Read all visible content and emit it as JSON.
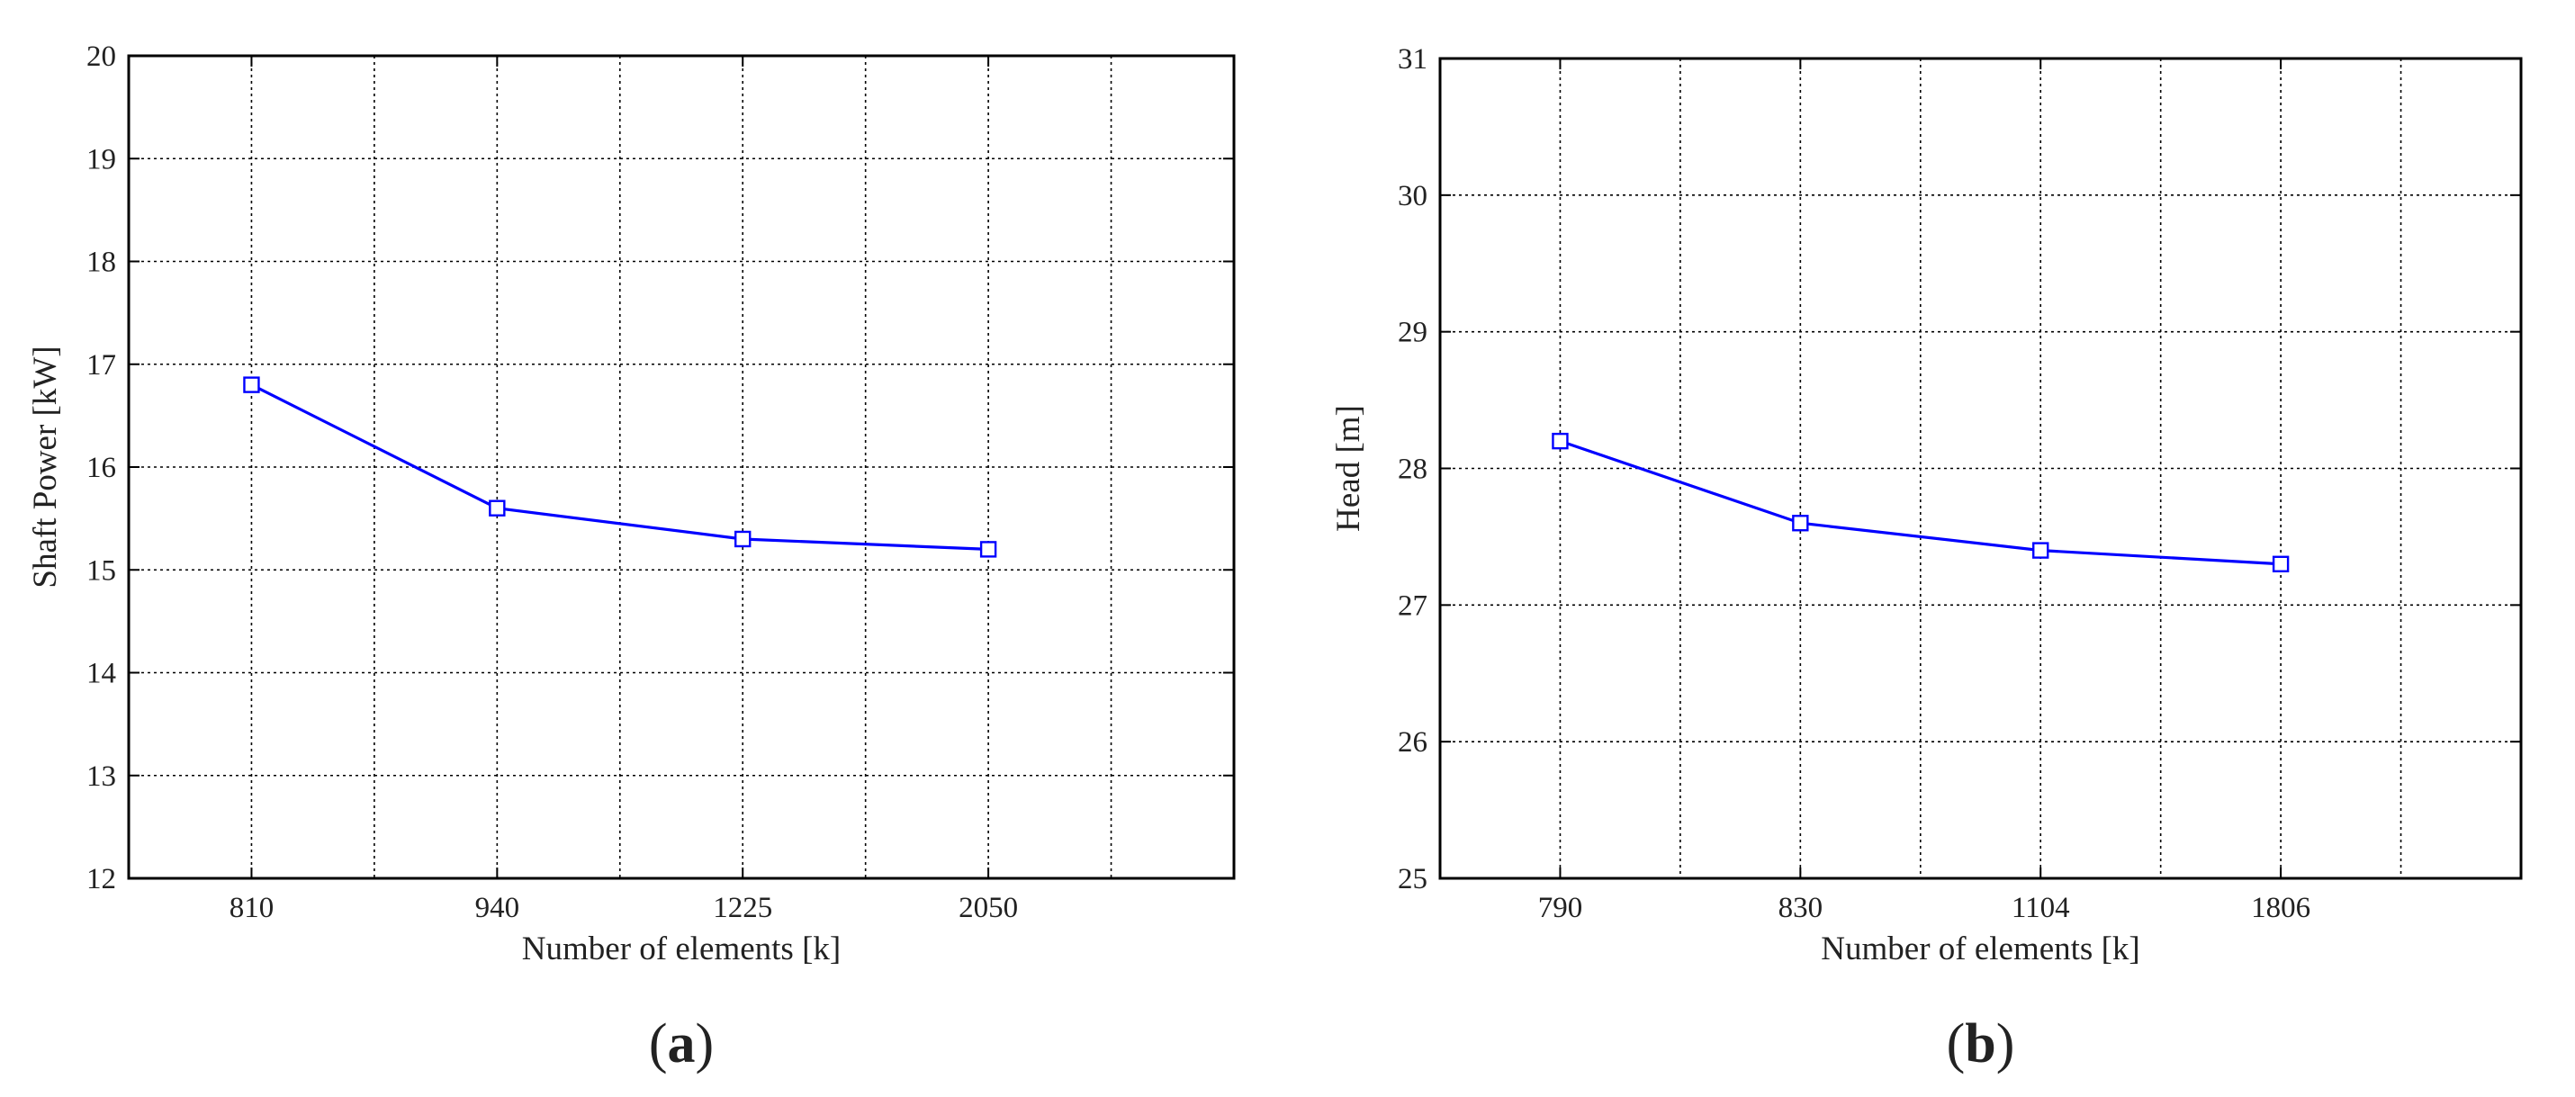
{
  "chart_data": [
    {
      "type": "line",
      "panel_label": [
        "(",
        "a",
        ")"
      ],
      "title": "",
      "xlabel": "Number of elements [k]",
      "ylabel": "Shaft Power [kW]",
      "categories": [
        "810",
        "940",
        "1225",
        "2050"
      ],
      "series": [
        {
          "values": [
            16.8,
            15.6,
            15.3,
            15.2
          ],
          "color": "#0000ff",
          "marker": "square"
        }
      ],
      "ylim": [
        12,
        20
      ],
      "yticks": [
        "12",
        "13",
        "14",
        "15",
        "16",
        "17",
        "18",
        "19",
        "20"
      ],
      "grid": true
    },
    {
      "type": "line",
      "panel_label": [
        "(",
        "b",
        ")"
      ],
      "title": "",
      "xlabel": "Number of elements [k]",
      "ylabel": "Head [m]",
      "categories": [
        "790",
        "830",
        "1104",
        "1806"
      ],
      "series": [
        {
          "values": [
            28.2,
            27.6,
            27.4,
            27.3
          ],
          "color": "#0000ff",
          "marker": "square"
        }
      ],
      "ylim": [
        25,
        31
      ],
      "yticks": [
        "25",
        "26",
        "27",
        "28",
        "29",
        "30",
        "31"
      ],
      "grid": true
    }
  ]
}
